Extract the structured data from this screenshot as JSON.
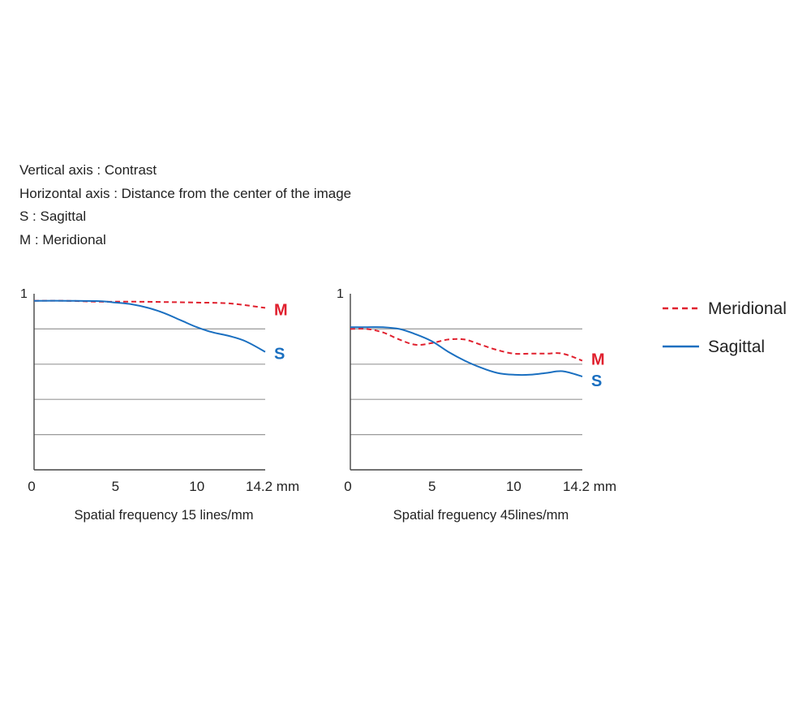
{
  "notes": [
    "Vertical axis : Contrast",
    "Horizontal axis : Distance from the center of the image",
    "S : Sagittal",
    "M : Meridional"
  ],
  "legend": {
    "meridional": "Meridional",
    "sagittal": "Sagittal"
  },
  "colors": {
    "meridional": "#e0202e",
    "sagittal": "#1a6fc0",
    "grid": "#999999",
    "axis": "#444444"
  },
  "chart_data": [
    {
      "type": "line",
      "title": "Spatial frequency 15 lines/mm",
      "xlim": [
        0,
        14.2
      ],
      "ylim": [
        0,
        1
      ],
      "x_ticks": [
        "0",
        "5",
        "10",
        "14.2 mm"
      ],
      "x_tick_values": [
        0,
        5,
        10,
        14.2
      ],
      "y_tick_label": "1",
      "grid_y": [
        0.2,
        0.4,
        0.6,
        0.8
      ],
      "series": [
        {
          "name": "M",
          "style": "dashed",
          "x": [
            0,
            2,
            4,
            6,
            8,
            10,
            12,
            14.2
          ],
          "y": [
            0.96,
            0.96,
            0.955,
            0.955,
            0.953,
            0.95,
            0.945,
            0.92
          ]
        },
        {
          "name": "S",
          "style": "solid",
          "x": [
            0,
            2,
            4,
            5,
            6,
            7,
            8,
            9,
            10,
            11,
            12,
            13,
            14.2
          ],
          "y": [
            0.96,
            0.96,
            0.958,
            0.95,
            0.94,
            0.92,
            0.89,
            0.85,
            0.81,
            0.78,
            0.76,
            0.73,
            0.67
          ]
        }
      ]
    },
    {
      "type": "line",
      "title": "Spatial freguency 45lines/mm",
      "xlim": [
        0,
        14.2
      ],
      "ylim": [
        0,
        1
      ],
      "x_ticks": [
        "0",
        "5",
        "10",
        "14.2 mm"
      ],
      "x_tick_values": [
        0,
        5,
        10,
        14.2
      ],
      "y_tick_label": "1",
      "grid_y": [
        0.2,
        0.4,
        0.6,
        0.8
      ],
      "series": [
        {
          "name": "M",
          "style": "dashed",
          "x": [
            0,
            1,
            2,
            3,
            4,
            5,
            6,
            7,
            8,
            9,
            10,
            11,
            12,
            13,
            14.2
          ],
          "y": [
            0.8,
            0.8,
            0.78,
            0.74,
            0.71,
            0.72,
            0.74,
            0.74,
            0.71,
            0.68,
            0.66,
            0.66,
            0.66,
            0.66,
            0.62
          ]
        },
        {
          "name": "S",
          "style": "solid",
          "x": [
            0,
            1,
            2,
            3,
            4,
            5,
            6,
            7,
            8,
            9,
            10,
            11,
            12,
            13,
            14.2
          ],
          "y": [
            0.81,
            0.81,
            0.81,
            0.8,
            0.77,
            0.73,
            0.67,
            0.62,
            0.58,
            0.55,
            0.54,
            0.54,
            0.55,
            0.56,
            0.53
          ]
        }
      ]
    }
  ]
}
